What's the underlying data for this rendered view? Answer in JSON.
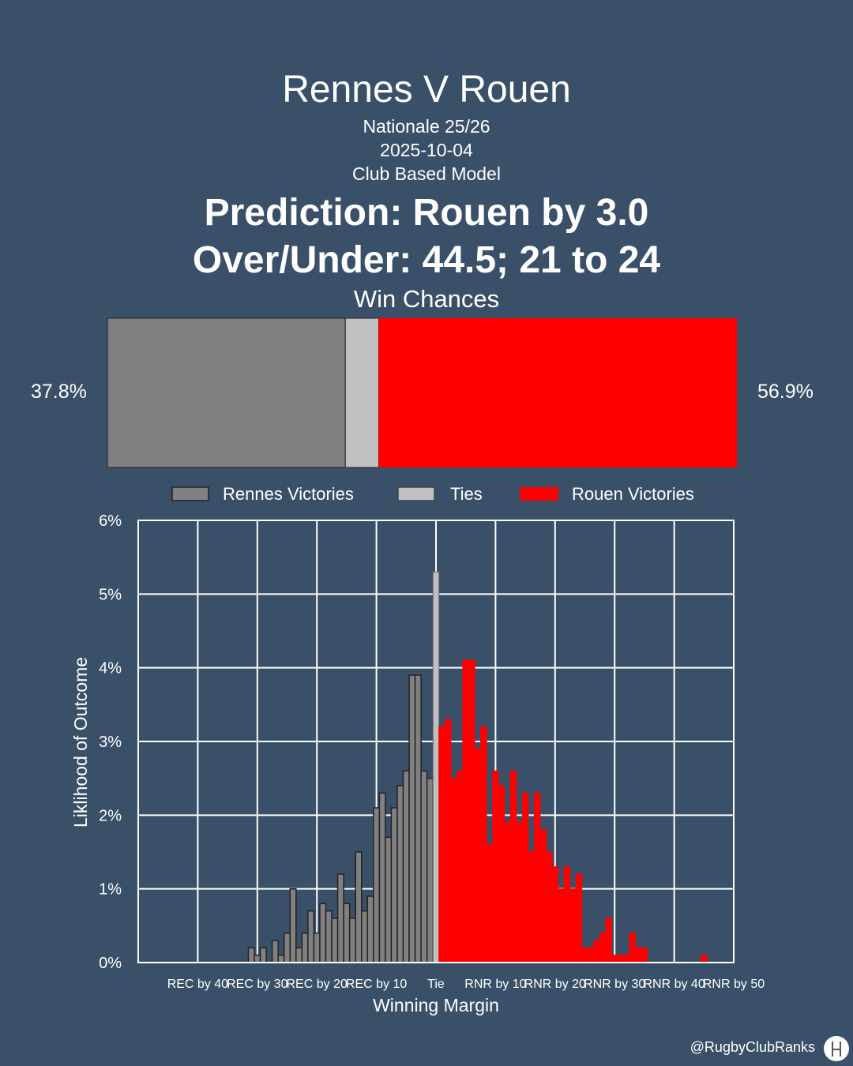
{
  "header": {
    "title": "Rennes V Rouen",
    "competition": "Nationale 25/26",
    "date": "2025-10-04",
    "model": "Club Based Model",
    "prediction": "Prediction: Rouen by 3.0",
    "over_under": "Over/Under: 44.5; 21 to 24"
  },
  "win_chances": {
    "title": "Win Chances",
    "home_label": "37.8%",
    "away_label": "56.9%",
    "home_value": 37.8,
    "tie_value": 5.3,
    "away_value": 56.9
  },
  "legend": {
    "home": "Rennes Victories",
    "tie": "Ties",
    "away": "Rouen Victories"
  },
  "colors": {
    "background": "#3a5068",
    "home": "#808080",
    "tie": "#c0c0c0",
    "away": "#ff0000"
  },
  "footer": {
    "handle": "@RugbyClubRanks",
    "logo_icon": "rugby-posts-icon"
  },
  "chart_data": {
    "type": "bar",
    "xlabel": "Winning Margin",
    "ylabel": "Liklihood of Outcome",
    "xlim": [
      -50,
      50
    ],
    "ylim": [
      0,
      6
    ],
    "grid": true,
    "y_ticks": [
      "0%",
      "1%",
      "2%",
      "3%",
      "4%",
      "5%",
      "6%"
    ],
    "x_ticks": [
      {
        "value": -40,
        "label": "REC by 40"
      },
      {
        "value": -30,
        "label": "REC by 30"
      },
      {
        "value": -20,
        "label": "REC by 20"
      },
      {
        "value": -10,
        "label": "REC by 10"
      },
      {
        "value": 0,
        "label": "Tie"
      },
      {
        "value": 10,
        "label": "RNR by 10"
      },
      {
        "value": 20,
        "label": "RNR by 20"
      },
      {
        "value": 30,
        "label": "RNR by 30"
      },
      {
        "value": 40,
        "label": "RNR by 40"
      },
      {
        "value": 50,
        "label": "RNR by 50"
      }
    ],
    "series": [
      {
        "name": "Rennes Victories",
        "x": [
          -31,
          -30,
          -29,
          -28,
          -27,
          -26,
          -25,
          -24,
          -23,
          -22,
          -21,
          -20,
          -19,
          -18,
          -17,
          -16,
          -15,
          -14,
          -13,
          -12,
          -11,
          -10,
          -9,
          -8,
          -7,
          -6,
          -5,
          -4,
          -3,
          -2,
          -1
        ],
        "values": [
          0.2,
          0.1,
          0.2,
          0,
          0.3,
          0.1,
          0.4,
          1.0,
          0.2,
          0.4,
          0.7,
          0.4,
          0.8,
          0.7,
          0.6,
          1.2,
          0.8,
          0.6,
          1.5,
          0.7,
          0.9,
          2.1,
          2.3,
          1.7,
          2.1,
          2.4,
          2.6,
          3.9,
          3.9,
          2.6,
          2.5
        ]
      },
      {
        "name": "Ties",
        "x": [
          0
        ],
        "values": [
          5.3
        ]
      },
      {
        "name": "Rouen Victories",
        "x": [
          1,
          2,
          3,
          4,
          5,
          6,
          7,
          8,
          9,
          10,
          11,
          12,
          13,
          14,
          15,
          16,
          17,
          18,
          19,
          20,
          21,
          22,
          23,
          24,
          25,
          26,
          27,
          28,
          29,
          30,
          31,
          32,
          33,
          34,
          35,
          36,
          37,
          38,
          39,
          40,
          41,
          42,
          43,
          44,
          45
        ],
        "values": [
          3.2,
          3.3,
          2.5,
          2.6,
          4.1,
          4.1,
          2.9,
          3.2,
          1.6,
          2.6,
          2.4,
          1.9,
          2.6,
          1.9,
          2.3,
          1.5,
          2.3,
          1.8,
          1.5,
          1.3,
          1.0,
          1.3,
          1.0,
          1.2,
          0.2,
          0.2,
          0.3,
          0.4,
          0.6,
          0.1,
          0.1,
          0.1,
          0.4,
          0.2,
          0.2,
          0,
          0,
          0,
          0,
          0,
          0,
          0,
          0,
          0,
          0.1
        ]
      }
    ]
  }
}
